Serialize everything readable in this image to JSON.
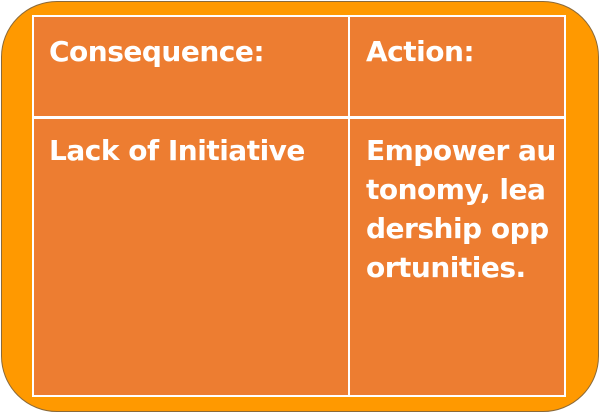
{
  "table": {
    "headers": [
      "Consequence:",
      "Action:"
    ],
    "rows": [
      {
        "consequence": "Lack of Initiative",
        "action": "Empower autonomy, leadership opportunities."
      }
    ]
  },
  "colors": {
    "frame": "#FF9900",
    "cell": "#ED7D31",
    "text": "#FFFFFF",
    "grid_lines": "#FFFFFF"
  }
}
